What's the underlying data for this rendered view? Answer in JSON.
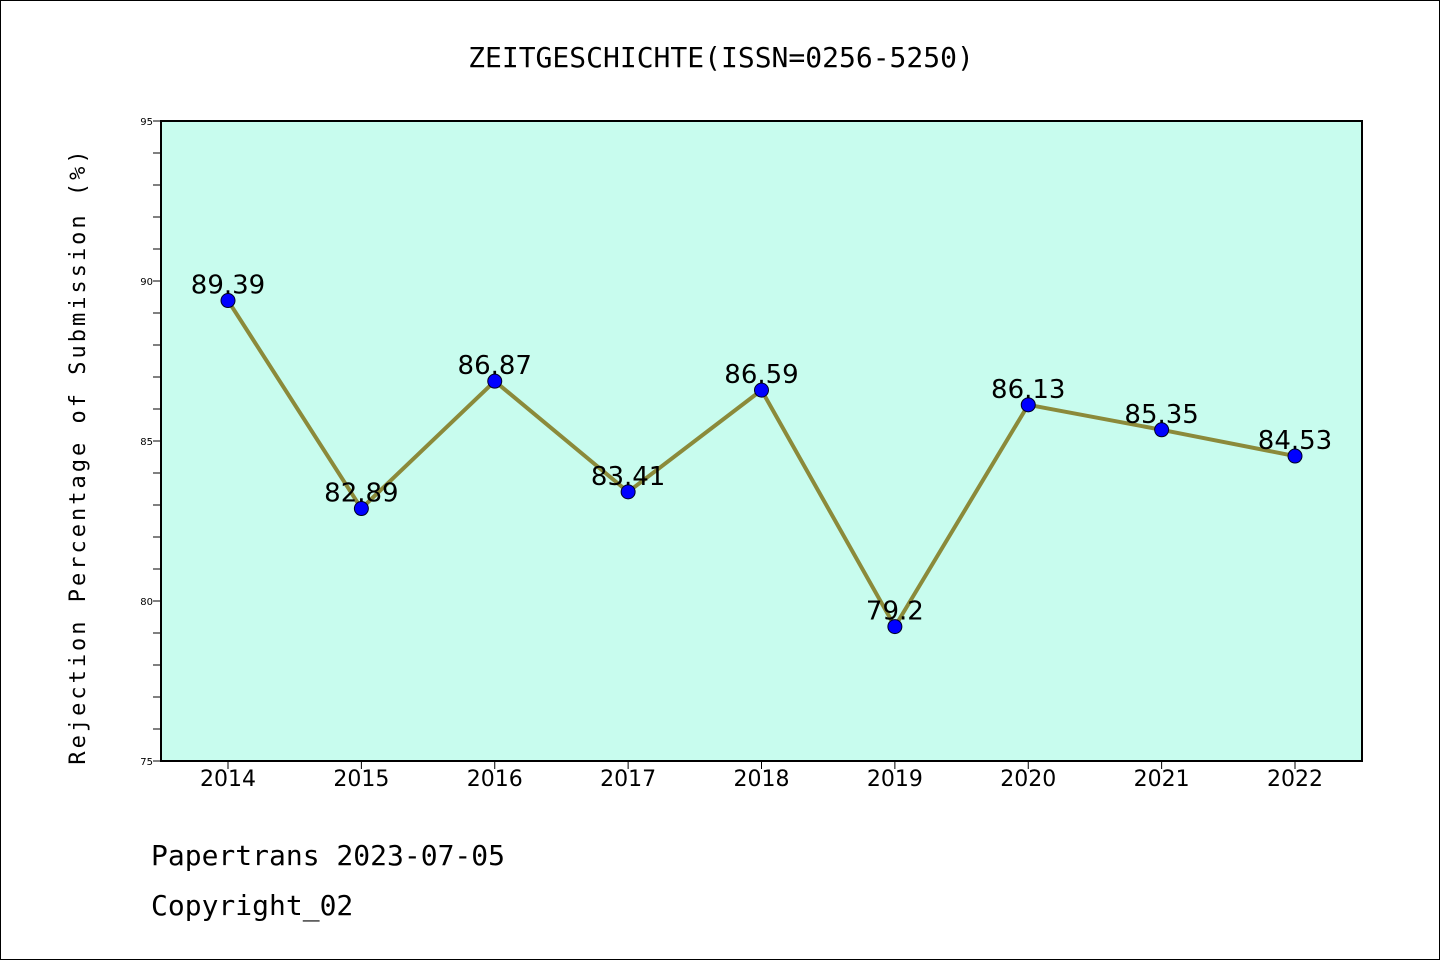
{
  "chart_data": {
    "type": "line",
    "title": "ZEITGESCHICHTE(ISSN=0256-5250)",
    "xlabel": "",
    "ylabel": "Rejection Percentage of Submission (%)",
    "categories": [
      "2014",
      "2015",
      "2016",
      "2017",
      "2018",
      "2019",
      "2020",
      "2021",
      "2022"
    ],
    "values": [
      89.39,
      82.89,
      86.87,
      83.41,
      86.59,
      79.2,
      86.13,
      85.35,
      84.53
    ],
    "data_labels": [
      "89.39",
      "82.89",
      "86.87",
      "83.41",
      "86.59",
      "79.2",
      "86.13",
      "85.35",
      "84.53"
    ],
    "ylim": [
      75,
      95
    ],
    "yticks": [
      75,
      80,
      85,
      90,
      95
    ],
    "grid": false,
    "legend": "none",
    "colors": {
      "plot_background": "#c8fcee",
      "line": "#8b8a3a",
      "marker": "#0000ff"
    }
  },
  "footer": {
    "line1": "Papertrans 2023-07-05",
    "line2": "Copyright_02"
  }
}
